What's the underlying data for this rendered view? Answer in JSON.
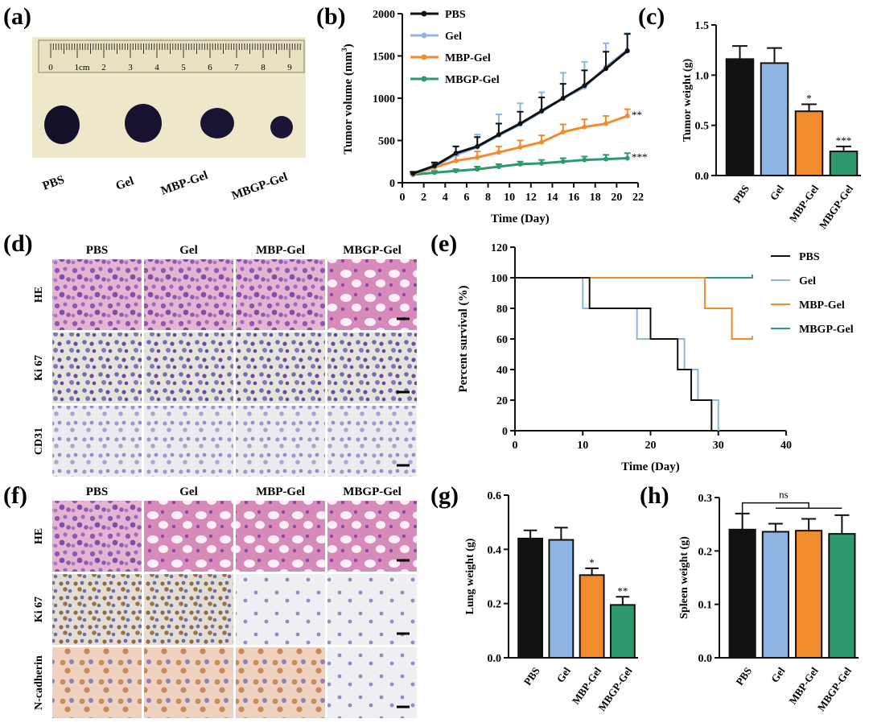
{
  "panels": {
    "a": "(a)",
    "b": "(b)",
    "c": "(c)",
    "d": "(d)",
    "e": "(e)",
    "f": "(f)",
    "g": "(g)",
    "h": "(h)"
  },
  "groups": [
    "PBS",
    "Gel",
    "MBP-Gel",
    "MBGP-Gel"
  ],
  "colors": {
    "PBS": "#111111",
    "Gel": "#8db4e2",
    "MBP-Gel": "#f28a2e",
    "MBGP-Gel": "#2e9a6c"
  },
  "photo_a": {
    "ruler_labels": [
      "0",
      "1cm",
      "2",
      "3",
      "4",
      "5",
      "6",
      "7",
      "8",
      "9"
    ],
    "labels": [
      "PBS",
      "Gel",
      "MBP-Gel",
      "MBGP-Gel"
    ]
  },
  "histology_d": {
    "columns": [
      "PBS",
      "Gel",
      "MBP-Gel",
      "MBGP-Gel"
    ],
    "rows": [
      "HE",
      "Ki 67",
      "CD31"
    ]
  },
  "histology_f": {
    "columns": [
      "PBS",
      "Gel",
      "MBP-Gel",
      "MBGP-Gel"
    ],
    "rows": [
      "HE",
      "Ki 67",
      "N-cadherin"
    ]
  },
  "chart_data": [
    {
      "panel": "b",
      "type": "line",
      "xlabel": "Time (Day)",
      "ylabel": "Tumor volume (mm",
      "ylabel_sup": "3",
      "ylabel_end": ")",
      "xlim": [
        0,
        22
      ],
      "ylim": [
        0,
        2000
      ],
      "xticks": [
        "0",
        "2",
        "4",
        "6",
        "8",
        "10",
        "12",
        "14",
        "16",
        "18",
        "20",
        "22"
      ],
      "yticks": [
        "0",
        "500",
        "1000",
        "1500",
        "2000"
      ],
      "x": [
        1,
        3,
        5,
        7,
        9,
        11,
        13,
        15,
        17,
        19,
        21
      ],
      "series": [
        {
          "name": "PBS",
          "values": [
            110,
            200,
            350,
            430,
            570,
            700,
            850,
            1000,
            1150,
            1350,
            1560
          ],
          "err": [
            20,
            40,
            80,
            110,
            130,
            140,
            160,
            170,
            180,
            200,
            200
          ]
        },
        {
          "name": "Gel",
          "values": [
            105,
            190,
            330,
            420,
            560,
            690,
            840,
            1000,
            1130,
            1370,
            1570
          ],
          "err": [
            20,
            50,
            100,
            150,
            250,
            250,
            230,
            300,
            300,
            280,
            200
          ]
        },
        {
          "name": "MBP-Gel",
          "values": [
            100,
            180,
            260,
            300,
            360,
            420,
            480,
            600,
            660,
            700,
            790
          ],
          "err": [
            20,
            40,
            60,
            70,
            70,
            80,
            80,
            90,
            90,
            90,
            80
          ]
        },
        {
          "name": "MBGP-Gel",
          "values": [
            95,
            120,
            140,
            160,
            190,
            220,
            230,
            250,
            270,
            280,
            290
          ],
          "err": [
            10,
            20,
            20,
            30,
            30,
            30,
            40,
            40,
            40,
            50,
            60
          ]
        }
      ],
      "annotations": [
        "**",
        "***"
      ]
    },
    {
      "panel": "c",
      "type": "bar",
      "ylabel": "Tumor weight (g)",
      "ylim": [
        0,
        1.5
      ],
      "yticks": [
        "0.0",
        "0.5",
        "1.0",
        "1.5"
      ],
      "categories": [
        "PBS",
        "Gel",
        "MBP-Gel",
        "MBGP-Gel"
      ],
      "values": [
        1.16,
        1.12,
        0.64,
        0.24
      ],
      "err": [
        0.13,
        0.15,
        0.07,
        0.05
      ],
      "annotations": [
        "",
        "",
        "*",
        "***"
      ]
    },
    {
      "panel": "e",
      "type": "line",
      "xlabel": "Time (Day)",
      "ylabel": "Percent survival (%)",
      "xlim": [
        0,
        40
      ],
      "ylim": [
        0,
        120
      ],
      "xticks": [
        "0",
        "10",
        "20",
        "30",
        "40"
      ],
      "yticks": [
        "0",
        "20",
        "40",
        "60",
        "80",
        "100",
        "120"
      ],
      "series": [
        {
          "name": "PBS",
          "steps": [
            [
              0,
              100
            ],
            [
              11,
              100
            ],
            [
              11,
              80
            ],
            [
              20,
              80
            ],
            [
              20,
              60
            ],
            [
              24,
              60
            ],
            [
              24,
              40
            ],
            [
              26,
              40
            ],
            [
              26,
              20
            ],
            [
              29,
              20
            ],
            [
              29,
              0
            ]
          ]
        },
        {
          "name": "Gel",
          "steps": [
            [
              0,
              100
            ],
            [
              10,
              100
            ],
            [
              10,
              80
            ],
            [
              18,
              80
            ],
            [
              18,
              60
            ],
            [
              25,
              60
            ],
            [
              25,
              40
            ],
            [
              27,
              40
            ],
            [
              27,
              20
            ],
            [
              30,
              20
            ],
            [
              30,
              0
            ]
          ]
        },
        {
          "name": "MBP-Gel",
          "steps": [
            [
              0,
              100
            ],
            [
              28,
              100
            ],
            [
              28,
              80
            ],
            [
              32,
              80
            ],
            [
              32,
              60
            ],
            [
              35,
              60
            ]
          ]
        },
        {
          "name": "MBGP-Gel",
          "steps": [
            [
              0,
              100
            ],
            [
              35,
              100
            ]
          ]
        }
      ]
    },
    {
      "panel": "g",
      "type": "bar",
      "ylabel": "Lung weight (g)",
      "ylim": [
        0,
        0.6
      ],
      "yticks": [
        "0.0",
        "0.2",
        "0.4",
        "0.6"
      ],
      "categories": [
        "PBS",
        "Gel",
        "MBP-Gel",
        "MBGP-Gel"
      ],
      "values": [
        0.44,
        0.435,
        0.305,
        0.195
      ],
      "err": [
        0.03,
        0.045,
        0.025,
        0.03
      ],
      "annotations": [
        "",
        "",
        "*",
        "**"
      ]
    },
    {
      "panel": "h",
      "type": "bar",
      "ylabel": "Spleen weight (g)",
      "ylim": [
        0,
        0.3
      ],
      "yticks": [
        "0.0",
        "0.1",
        "0.2",
        "0.3"
      ],
      "categories": [
        "PBS",
        "Gel",
        "MBP-Gel",
        "MBGP-Gel"
      ],
      "values": [
        0.24,
        0.236,
        0.238,
        0.232
      ],
      "err": [
        0.03,
        0.015,
        0.022,
        0.035
      ],
      "annotations": [
        "ns"
      ]
    }
  ]
}
